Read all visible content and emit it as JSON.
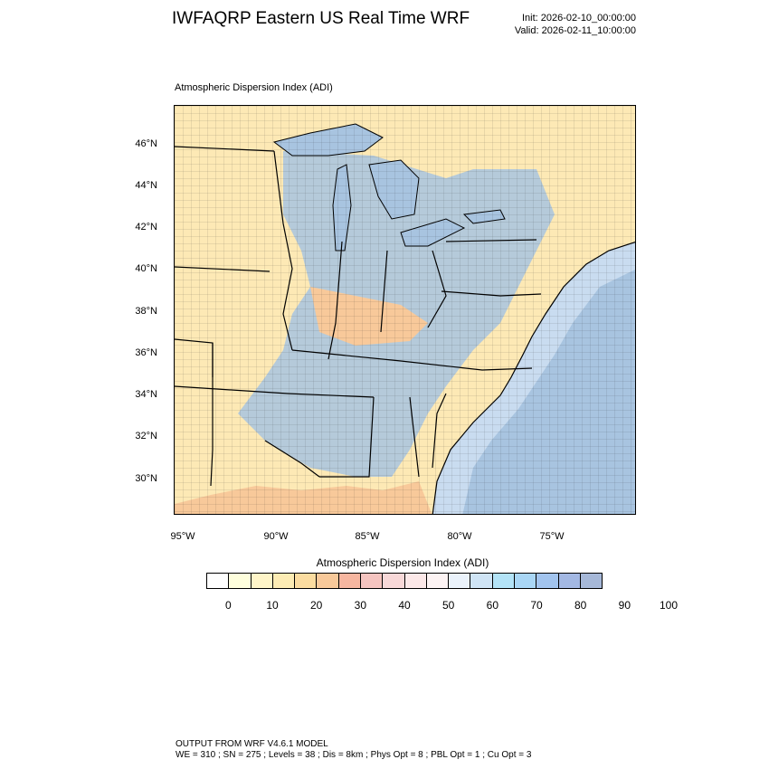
{
  "header": {
    "title": "IWFAQRP Eastern US Real Time WRF",
    "init": "Init: 2026-02-10_00:00:00",
    "valid": "Valid: 2026-02-11_10:00:00"
  },
  "map": {
    "subtitle": "Atmospheric Dispersion Index   (ADI)",
    "lat_labels": [
      "46°N",
      "44°N",
      "42°N",
      "40°N",
      "38°N",
      "36°N",
      "34°N",
      "32°N",
      "30°N"
    ],
    "lon_labels": [
      "95°W",
      "90°W",
      "85°W",
      "80°W",
      "75°W"
    ],
    "colors": {
      "ocean_low": "#a8c4e0",
      "ocean_shelf": "#c9dcf0",
      "land_low": "#fde9b5",
      "land_mid": "#f8c99a",
      "land_high": "#a8c4e0",
      "lakes": "#a8c4e0"
    }
  },
  "colorbar": {
    "title": "Atmospheric Dispersion Index  (ADI)",
    "colors": [
      "#ffffff",
      "#ffffdd",
      "#fff5c8",
      "#fdecb4",
      "#fbdca0",
      "#f8c99a",
      "#f6b6a0",
      "#f5c4c0",
      "#f8d8d8",
      "#fce8e8",
      "#fdf4f4",
      "#eaf2fb",
      "#cfe4f5",
      "#b3e3f7",
      "#a9d6f5",
      "#a2c4ee",
      "#a3b8e3",
      "#a6b8d8"
    ],
    "labels": [
      "0",
      "10",
      "20",
      "30",
      "40",
      "50",
      "60",
      "70",
      "80",
      "90",
      "100"
    ]
  },
  "footer": {
    "line1": "OUTPUT FROM WRF V4.6.1 MODEL",
    "line2": "WE = 310 ; SN = 275 ; Levels = 38 ; Dis = 8km ; Phys Opt = 8 ; PBL Opt = 1 ; Cu Opt = 3"
  }
}
